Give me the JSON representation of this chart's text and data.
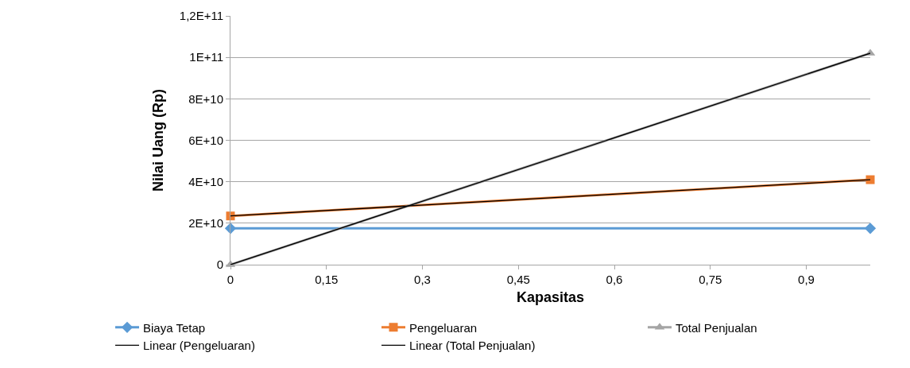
{
  "chart_data": {
    "type": "line",
    "xlabel": "Kapasitas",
    "ylabel": "Nilai Uang (Rp)",
    "xlim": [
      0,
      1
    ],
    "xticks": [
      0,
      {
        "value": 0.15,
        "label": "0,15"
      },
      {
        "value": 0.3,
        "label": "0,3"
      },
      {
        "value": 0.45,
        "label": "0,45"
      },
      {
        "value": 0.6,
        "label": "0,6"
      },
      {
        "value": 0.75,
        "label": "0,75"
      },
      {
        "value": 0.9,
        "label": "0,9"
      }
    ],
    "ylim": [
      0,
      120000000000
    ],
    "yticks": [
      0,
      {
        "value": 20000000000,
        "label": "2E+10"
      },
      {
        "value": 40000000000,
        "label": "4E+10"
      },
      {
        "value": 60000000000,
        "label": "6E+10"
      },
      {
        "value": 80000000000,
        "label": "8E+10"
      },
      {
        "value": 100000000000,
        "label": "1E+11"
      },
      {
        "value": 120000000000,
        "label": "1,2E+11"
      }
    ],
    "grid": "y",
    "legend": "bottom",
    "x": [
      0,
      1
    ],
    "series": [
      {
        "name": "Biaya Tetap",
        "color": "#5b9bd5",
        "marker": "diamond",
        "values": [
          17500000000,
          17500000000
        ]
      },
      {
        "name": "Pengeluaran",
        "color": "#ed7d31",
        "marker": "square",
        "values": [
          23500000000,
          41000000000
        ]
      },
      {
        "name": "Total Penjualan",
        "color": "#a5a5a5",
        "marker": "triangle",
        "values": [
          0,
          102000000000
        ]
      },
      {
        "name": "Linear (Pengeluaran)",
        "color": "#000000",
        "marker": "none",
        "values": [
          23500000000,
          41000000000
        ]
      },
      {
        "name": "Linear (Total Penjualan)",
        "color": "#000000",
        "marker": "none",
        "values": [
          0,
          102000000000
        ]
      }
    ]
  }
}
